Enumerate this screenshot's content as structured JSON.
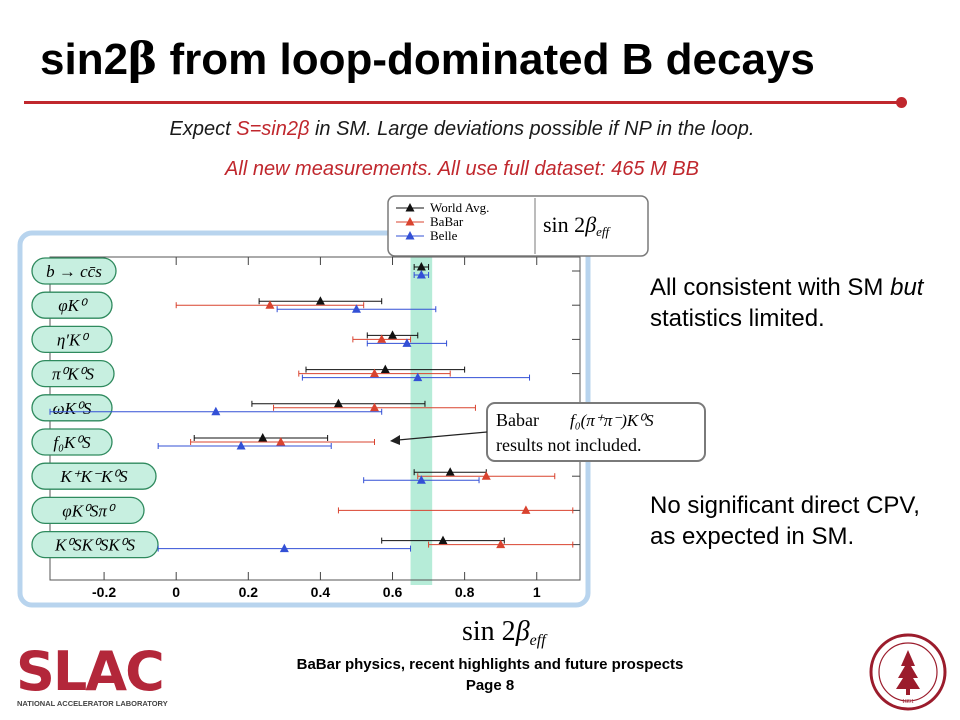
{
  "slide": {
    "title_pre": "sin2",
    "title_greek": "β",
    "title_post": " from loop-dominated B decays",
    "subtitle1_pre": "Expect ",
    "subtitle1_red": "S=sin2β",
    "subtitle1_post": " in SM.  Large deviations possible if NP in the loop.",
    "subtitle2": "All new measurements. All use full dataset: 465 M BB",
    "note_top_1": "All consistent with SM ",
    "note_top_italic": "but",
    "note_top_2": " statistics limited.",
    "note_bottom": "No significant direct CPV, as expected in SM.",
    "footer_line1": "BaBar physics, recent highlights and future prospects",
    "footer_line2": "Page 8",
    "logo_text": "SLAC",
    "logo_subtext": "NATIONAL ACCELERATOR LABORATORY",
    "seal_year": "1891"
  },
  "chart_data": {
    "type": "scatter",
    "title": "",
    "xlabel": "sin 2β_eff",
    "ylabel": "",
    "xlim": [
      -0.35,
      1.12
    ],
    "xticks": [
      "-0.2",
      "0",
      "0.2",
      "0.4",
      "0.6",
      "0.8",
      "1"
    ],
    "xtick_values": [
      -0.2,
      0,
      0.2,
      0.4,
      0.6,
      0.8,
      1.0
    ],
    "grid": false,
    "legend": {
      "placement": "top",
      "entries": [
        "World Avg.",
        "BaBar",
        "Belle"
      ],
      "label": "sin 2β_eff"
    },
    "band": {
      "center": 0.68,
      "half_width": 0.03,
      "color": "#b6ecd8"
    },
    "colors": {
      "World Avg.": "#111111",
      "BaBar": "#d9432f",
      "Belle": "#3350d6"
    },
    "categories": [
      "b → cc̄s",
      "φK⁰",
      "η′K⁰",
      "π⁰K⁰S",
      "ωK⁰S",
      "f₀K⁰S",
      "K⁺K⁻K⁰S",
      "φK⁰Sπ⁰",
      "K⁰SK⁰SK⁰S"
    ],
    "series": [
      {
        "name": "World Avg.",
        "points": [
          {
            "category": "b → cc̄s",
            "value": 0.68,
            "lo": 0.66,
            "hi": 0.7
          },
          {
            "category": "φK⁰",
            "value": 0.4,
            "lo": 0.23,
            "hi": 0.57
          },
          {
            "category": "η′K⁰",
            "value": 0.6,
            "lo": 0.53,
            "hi": 0.67
          },
          {
            "category": "π⁰K⁰S",
            "value": 0.58,
            "lo": 0.36,
            "hi": 0.8
          },
          {
            "category": "ωK⁰S",
            "value": 0.45,
            "lo": 0.21,
            "hi": 0.69
          },
          {
            "category": "f₀K⁰S",
            "value": 0.24,
            "lo": 0.05,
            "hi": 0.42
          },
          {
            "category": "K⁺K⁻K⁰S",
            "value": 0.76,
            "lo": 0.66,
            "hi": 0.86
          },
          {
            "category": "K⁰SK⁰SK⁰S",
            "value": 0.74,
            "lo": 0.57,
            "hi": 0.91
          }
        ]
      },
      {
        "name": "BaBar",
        "points": [
          {
            "category": "φK⁰",
            "value": 0.26,
            "lo": 0.0,
            "hi": 0.52
          },
          {
            "category": "η′K⁰",
            "value": 0.57,
            "lo": 0.49,
            "hi": 0.65
          },
          {
            "category": "π⁰K⁰S",
            "value": 0.55,
            "lo": 0.34,
            "hi": 0.76
          },
          {
            "category": "ωK⁰S",
            "value": 0.55,
            "lo": 0.27,
            "hi": 0.83
          },
          {
            "category": "f₀K⁰S",
            "value": 0.29,
            "lo": 0.04,
            "hi": 0.55
          },
          {
            "category": "K⁺K⁻K⁰S",
            "value": 0.86,
            "lo": 0.67,
            "hi": 1.05
          },
          {
            "category": "φK⁰Sπ⁰",
            "value": 0.97,
            "lo": 0.45,
            "hi": 1.1
          },
          {
            "category": "K⁰SK⁰SK⁰S",
            "value": 0.9,
            "lo": 0.7,
            "hi": 1.1
          }
        ]
      },
      {
        "name": "Belle",
        "points": [
          {
            "category": "b → cc̄s",
            "value": 0.68,
            "lo": 0.66,
            "hi": 0.7
          },
          {
            "category": "φK⁰",
            "value": 0.5,
            "lo": 0.28,
            "hi": 0.72
          },
          {
            "category": "η′K⁰",
            "value": 0.64,
            "lo": 0.53,
            "hi": 0.75
          },
          {
            "category": "π⁰K⁰S",
            "value": 0.67,
            "lo": 0.35,
            "hi": 0.98
          },
          {
            "category": "ωK⁰S",
            "value": 0.11,
            "lo": -0.35,
            "hi": 0.57
          },
          {
            "category": "f₀K⁰S",
            "value": 0.18,
            "lo": -0.05,
            "hi": 0.43
          },
          {
            "category": "K⁺K⁻K⁰S",
            "value": 0.68,
            "lo": 0.52,
            "hi": 0.84
          },
          {
            "category": "K⁰SK⁰SK⁰S",
            "value": 0.3,
            "lo": -0.05,
            "hi": 0.65
          }
        ]
      }
    ],
    "annotations": [
      {
        "text_1": "Babar",
        "text_formula": "f₀(π⁺π⁻)K⁰S",
        "text_2": "results not included."
      }
    ]
  }
}
